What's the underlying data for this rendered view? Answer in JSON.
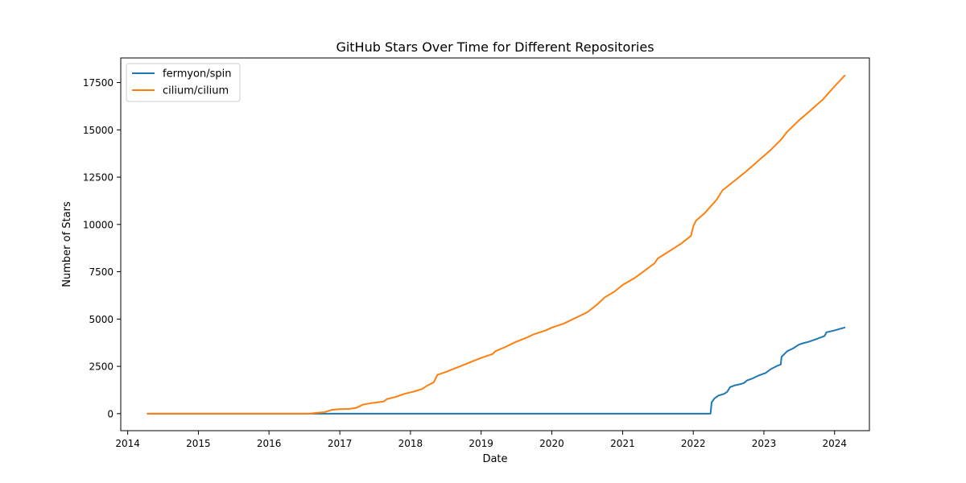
{
  "chart_data": {
    "type": "line",
    "title": "GitHub Stars Over Time for Different Repositories",
    "xlabel": "Date",
    "ylabel": "Number of Stars",
    "x_ticks": [
      "2014",
      "2015",
      "2016",
      "2017",
      "2018",
      "2019",
      "2020",
      "2021",
      "2022",
      "2023",
      "2024"
    ],
    "y_ticks": [
      "0",
      "2500",
      "5000",
      "7500",
      "10000",
      "12500",
      "15000",
      "17500"
    ],
    "x_range": [
      "2013-11-26",
      "2024-06-29"
    ],
    "y_range": [
      -900,
      18800
    ],
    "grid": false,
    "legend_position": "upper left",
    "series": [
      {
        "name": "fermyon/spin",
        "color": "#1f77b4",
        "points": [
          [
            "2014-04-10",
            0
          ],
          [
            "2016-08-01",
            0
          ],
          [
            "2018-01-01",
            0
          ],
          [
            "2020-01-01",
            0
          ],
          [
            "2022-03-31",
            0
          ],
          [
            "2022-04-06",
            600
          ],
          [
            "2022-04-20",
            800
          ],
          [
            "2022-05-10",
            950
          ],
          [
            "2022-06-10",
            1050
          ],
          [
            "2022-06-25",
            1150
          ],
          [
            "2022-07-10",
            1400
          ],
          [
            "2022-08-05",
            1500
          ],
          [
            "2022-09-01",
            1560
          ],
          [
            "2022-09-20",
            1620
          ],
          [
            "2022-10-05",
            1750
          ],
          [
            "2022-11-01",
            1850
          ],
          [
            "2022-12-01",
            2000
          ],
          [
            "2023-01-10",
            2150
          ],
          [
            "2023-02-05",
            2350
          ],
          [
            "2023-03-05",
            2500
          ],
          [
            "2023-03-29",
            2600
          ],
          [
            "2023-04-02",
            3000
          ],
          [
            "2023-05-01",
            3300
          ],
          [
            "2023-06-01",
            3450
          ],
          [
            "2023-07-01",
            3650
          ],
          [
            "2023-07-15",
            3700
          ],
          [
            "2023-08-20",
            3800
          ],
          [
            "2023-10-01",
            3950
          ],
          [
            "2023-11-10",
            4100
          ],
          [
            "2023-11-20",
            4300
          ],
          [
            "2024-01-01",
            4400
          ],
          [
            "2024-02-25",
            4560
          ]
        ]
      },
      {
        "name": "cilium/cilium",
        "color": "#ff7f0e",
        "points": [
          [
            "2014-04-10",
            0
          ],
          [
            "2016-08-01",
            0
          ],
          [
            "2016-09-01",
            40
          ],
          [
            "2016-10-15",
            80
          ],
          [
            "2016-11-20",
            200
          ],
          [
            "2017-01-01",
            240
          ],
          [
            "2017-02-15",
            250
          ],
          [
            "2017-03-25",
            300
          ],
          [
            "2017-05-01",
            480
          ],
          [
            "2017-06-15",
            560
          ],
          [
            "2017-08-01",
            620
          ],
          [
            "2017-08-15",
            640
          ],
          [
            "2017-09-01",
            770
          ],
          [
            "2017-10-15",
            880
          ],
          [
            "2017-12-01",
            1050
          ],
          [
            "2018-01-15",
            1160
          ],
          [
            "2018-03-01",
            1300
          ],
          [
            "2018-04-01",
            1500
          ],
          [
            "2018-05-01",
            1650
          ],
          [
            "2018-05-20",
            2050
          ],
          [
            "2018-07-01",
            2200
          ],
          [
            "2018-09-01",
            2450
          ],
          [
            "2018-11-01",
            2700
          ],
          [
            "2019-01-01",
            2950
          ],
          [
            "2019-03-01",
            3150
          ],
          [
            "2019-03-15",
            3300
          ],
          [
            "2019-05-01",
            3500
          ],
          [
            "2019-07-01",
            3800
          ],
          [
            "2019-09-01",
            4050
          ],
          [
            "2019-10-01",
            4200
          ],
          [
            "2019-12-01",
            4400
          ],
          [
            "2020-01-01",
            4550
          ],
          [
            "2020-03-01",
            4750
          ],
          [
            "2020-05-01",
            5050
          ],
          [
            "2020-07-01",
            5350
          ],
          [
            "2020-08-20",
            5750
          ],
          [
            "2020-10-01",
            6150
          ],
          [
            "2020-11-20",
            6450
          ],
          [
            "2021-01-01",
            6800
          ],
          [
            "2021-03-01",
            7150
          ],
          [
            "2021-05-01",
            7600
          ],
          [
            "2021-06-15",
            7950
          ],
          [
            "2021-07-01",
            8200
          ],
          [
            "2021-09-01",
            8600
          ],
          [
            "2021-11-01",
            9000
          ],
          [
            "2021-12-20",
            9400
          ],
          [
            "2022-01-01",
            9900
          ],
          [
            "2022-01-15",
            10200
          ],
          [
            "2022-03-01",
            10600
          ],
          [
            "2022-05-01",
            11300
          ],
          [
            "2022-06-01",
            11800
          ],
          [
            "2022-08-01",
            12300
          ],
          [
            "2022-10-01",
            12800
          ],
          [
            "2022-12-01",
            13350
          ],
          [
            "2023-02-01",
            13900
          ],
          [
            "2023-04-01",
            14500
          ],
          [
            "2023-05-01",
            14900
          ],
          [
            "2023-07-01",
            15500
          ],
          [
            "2023-09-01",
            16050
          ],
          [
            "2023-11-01",
            16600
          ],
          [
            "2024-01-01",
            17300
          ],
          [
            "2024-02-25",
            17900
          ]
        ]
      }
    ]
  }
}
